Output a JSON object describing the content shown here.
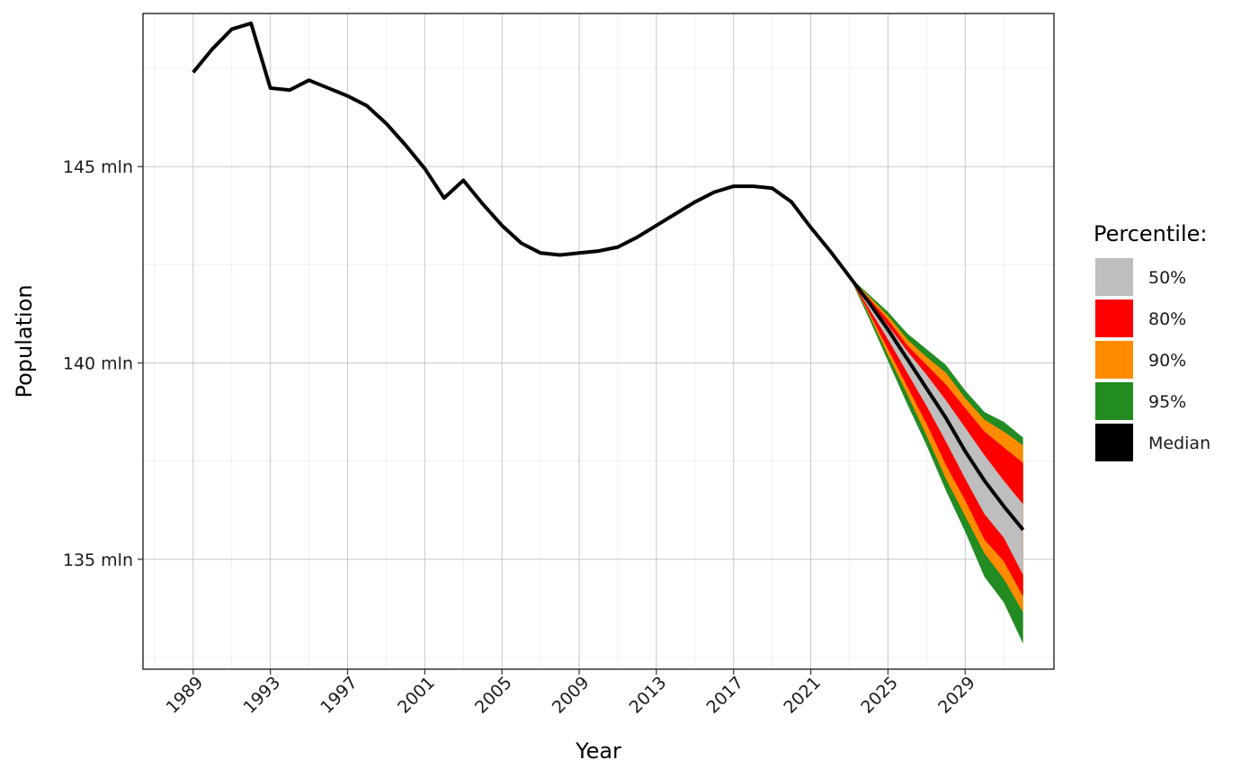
{
  "chart_data": {
    "type": "area",
    "xlabel": "Year",
    "ylabel": "Population",
    "xlim": [
      1986.4,
      2033.6
    ],
    "ylim": [
      132.2,
      148.9
    ],
    "x_ticks": [
      1989,
      1993,
      1997,
      2001,
      2005,
      2009,
      2013,
      2017,
      2021,
      2025,
      2029
    ],
    "x_tick_labels": [
      "1989",
      "1993",
      "1997",
      "2001",
      "2005",
      "2009",
      "2013",
      "2017",
      "2021",
      "2025",
      "2029"
    ],
    "y_ticks": [
      135,
      140,
      145
    ],
    "y_tick_labels": [
      "135 mln",
      "140 mln",
      "145 mln"
    ],
    "grid": true,
    "legend": {
      "title": "Percentile:",
      "position": "right",
      "entries": [
        {
          "label": "50%",
          "color": "#bebebe"
        },
        {
          "label": "80%",
          "color": "#ff0000"
        },
        {
          "label": "90%",
          "color": "#ff8c00"
        },
        {
          "label": "95%",
          "color": "#228b22"
        },
        {
          "label": "Median",
          "color": "#000000"
        }
      ]
    },
    "history": {
      "x": [
        1989,
        1990,
        1991,
        1992,
        1993,
        1994,
        1995,
        1996,
        1997,
        1998,
        1999,
        2000,
        2001,
        2002,
        2003,
        2004,
        2005,
        2006,
        2007,
        2008,
        2009,
        2010,
        2011,
        2012,
        2013,
        2014,
        2015,
        2016,
        2017,
        2018,
        2019,
        2020,
        2021,
        2022,
        2023
      ],
      "y": [
        147.4,
        148.0,
        148.5,
        148.65,
        147.0,
        146.95,
        147.2,
        147.0,
        146.8,
        146.55,
        146.1,
        145.55,
        144.95,
        144.2,
        144.65,
        144.05,
        143.5,
        143.05,
        142.8,
        142.75,
        142.8,
        142.85,
        142.95,
        143.2,
        143.5,
        143.8,
        144.1,
        144.35,
        144.5,
        144.5,
        144.45,
        144.1,
        143.45,
        142.85,
        142.2
      ]
    },
    "forecast": {
      "x": [
        2023,
        2024,
        2025,
        2026,
        2027,
        2028,
        2029,
        2030,
        2031,
        2032
      ],
      "median": [
        142.2,
        141.55,
        140.85,
        140.1,
        139.35,
        138.6,
        137.75,
        137.0,
        136.35,
        135.75
      ],
      "bands": [
        {
          "name": "95%",
          "color": "#228b22",
          "lower": [
            142.2,
            141.15,
            140.05,
            138.95,
            137.9,
            136.75,
            135.7,
            134.55,
            133.9,
            132.85
          ],
          "upper": [
            142.2,
            141.75,
            141.3,
            140.75,
            140.35,
            139.95,
            139.3,
            138.75,
            138.5,
            138.1
          ]
        },
        {
          "name": "90%",
          "color": "#ff8c00",
          "lower": [
            142.2,
            141.25,
            140.2,
            139.2,
            138.15,
            137.05,
            136.1,
            135.15,
            134.5,
            133.65
          ],
          "upper": [
            142.2,
            141.7,
            141.2,
            140.6,
            140.15,
            139.75,
            139.1,
            138.55,
            138.25,
            137.9
          ]
        },
        {
          "name": "80%",
          "color": "#ff0000",
          "lower": [
            142.2,
            141.3,
            140.35,
            139.4,
            138.45,
            137.4,
            136.5,
            135.5,
            134.95,
            134.05
          ],
          "upper": [
            142.2,
            141.65,
            141.1,
            140.45,
            139.95,
            139.45,
            138.85,
            138.25,
            137.85,
            137.45
          ]
        },
        {
          "name": "50%",
          "color": "#bebebe",
          "lower": [
            142.2,
            141.4,
            140.6,
            139.75,
            138.9,
            138.0,
            137.05,
            136.15,
            135.55,
            134.6
          ],
          "upper": [
            142.2,
            141.6,
            140.95,
            140.3,
            139.7,
            139.05,
            138.35,
            137.65,
            137.0,
            136.4
          ]
        }
      ]
    }
  }
}
